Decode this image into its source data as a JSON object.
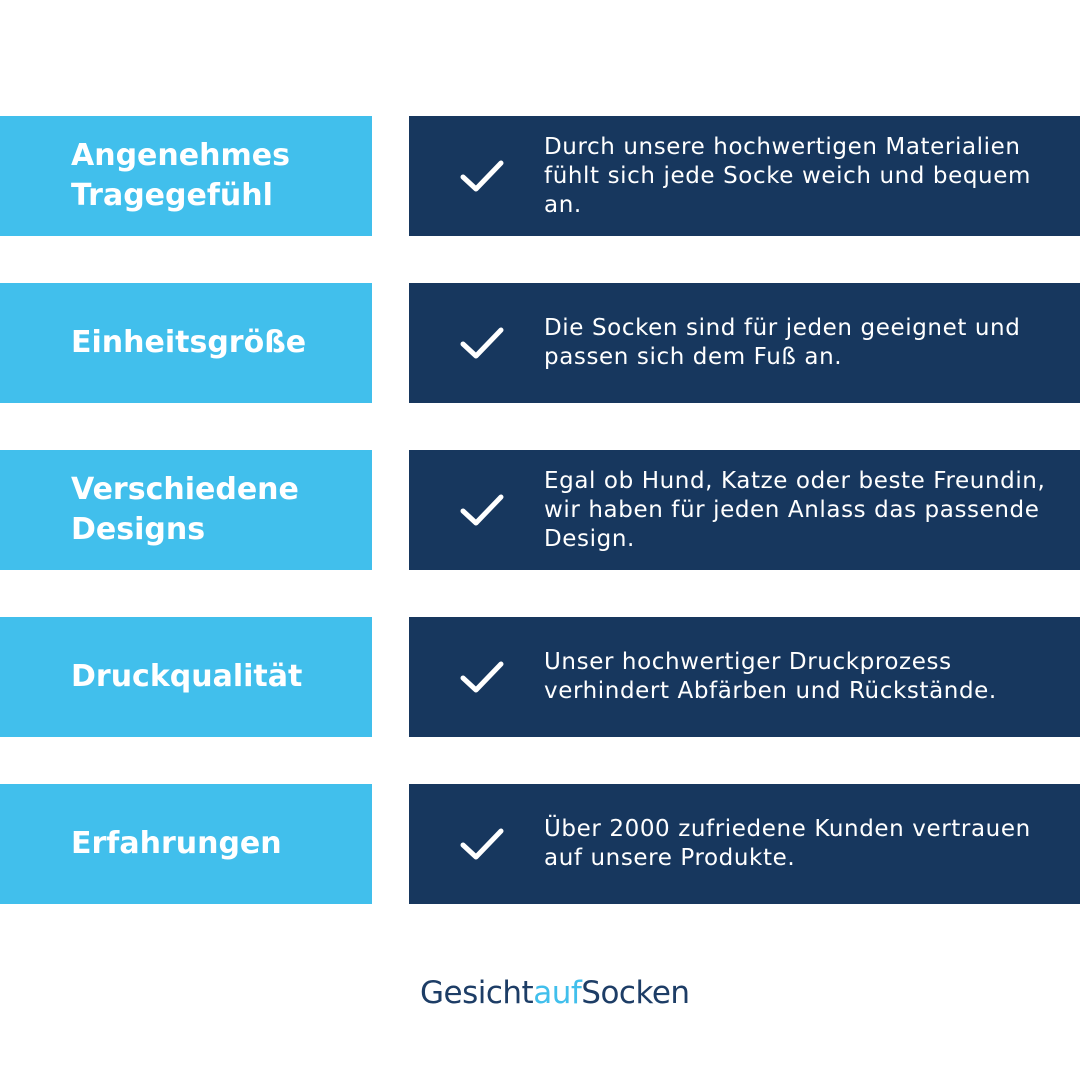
{
  "colors": {
    "label_bg": "#41bfec",
    "desc_bg": "#17375e"
  },
  "rows": [
    {
      "label": "Angenehmes Tragegefühl",
      "text": "Durch unsere hochwertigen Materialien fühlt sich jede Socke weich und bequem an.",
      "icon": "check-icon"
    },
    {
      "label": "Einheitsgröße",
      "text": "Die Socken sind für jeden geeignet und passen sich dem Fuß an.",
      "icon": "check-icon"
    },
    {
      "label": "Verschiedene Designs",
      "text": "Egal ob Hund, Katze oder beste Freundin, wir haben für jeden Anlass das passende Design.",
      "icon": "check-icon"
    },
    {
      "label": "Druckqualität",
      "text": "Unser hochwertiger Druckprozess verhindert Abfärben und Rückstände.",
      "icon": "check-icon"
    },
    {
      "label": "Erfahrungen",
      "text": "Über 2000 zufriedene Kunden vertrauen auf unsere Produkte.",
      "icon": "check-icon"
    }
  ],
  "logo": {
    "part1": "Gesicht",
    "part2": "auf",
    "part3": "Socken"
  }
}
